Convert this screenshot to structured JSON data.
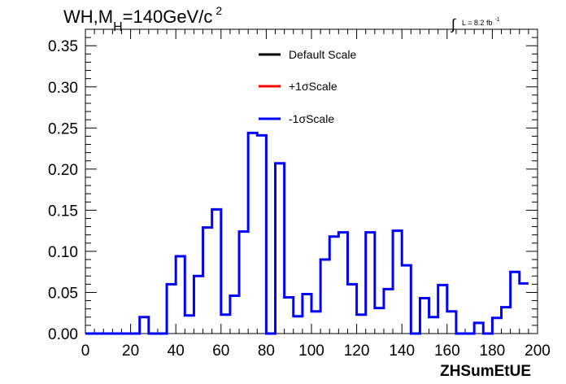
{
  "chart_data": {
    "type": "step",
    "title_parts": {
      "main": "WH,M",
      "sub": "H",
      "rest": "=140GeV/c",
      "sup": "2"
    },
    "lumi": {
      "integral": "∫",
      "text": "L = 8.2 fb",
      "sup": "-1"
    },
    "xlabel": "ZHSumEtUE",
    "ylabel": "",
    "xlim": [
      0,
      200
    ],
    "ylim": [
      0,
      0.37
    ],
    "xticks": [
      0,
      20,
      40,
      60,
      80,
      100,
      120,
      140,
      160,
      180,
      200
    ],
    "xtick_labels": [
      "0",
      "20",
      "40",
      "60",
      "80",
      "100",
      "120",
      "140",
      "160",
      "180",
      "200"
    ],
    "yticks": [
      0,
      0.05,
      0.1,
      0.15,
      0.2,
      0.25,
      0.3,
      0.35
    ],
    "ytick_labels": [
      "0.00",
      "0.05",
      "0.10",
      "0.15",
      "0.20",
      "0.25",
      "0.30",
      "0.35"
    ],
    "bin_width": 4,
    "legend_position": "top-center",
    "series": [
      {
        "name": "Default Scale",
        "color": "#000000",
        "draw": false,
        "values": [
          0,
          0,
          0,
          0,
          0,
          0,
          0.02,
          0,
          0,
          0.06,
          0.094,
          0.022,
          0.07,
          0.129,
          0.151,
          0.023,
          0.046,
          0.124,
          0.244,
          0.241,
          0,
          0.207,
          0.044,
          0.021,
          0.048,
          0.027,
          0.09,
          0.118,
          0.123,
          0.06,
          0.023,
          0.123,
          0.031,
          0.054,
          0.125,
          0.083,
          0,
          0.043,
          0.02,
          0.059,
          0.027,
          0,
          0,
          0.013,
          0,
          0.019,
          0.032,
          0.075,
          0.061
        ]
      },
      {
        "name": "+1σScale",
        "color": "#ff0000",
        "draw": false,
        "values": [
          0,
          0,
          0,
          0,
          0,
          0,
          0.02,
          0,
          0,
          0.06,
          0.094,
          0.022,
          0.07,
          0.129,
          0.151,
          0.023,
          0.046,
          0.124,
          0.244,
          0.241,
          0,
          0.207,
          0.044,
          0.021,
          0.048,
          0.027,
          0.09,
          0.118,
          0.123,
          0.06,
          0.023,
          0.123,
          0.031,
          0.054,
          0.125,
          0.083,
          0,
          0.043,
          0.02,
          0.059,
          0.027,
          0,
          0,
          0.013,
          0,
          0.019,
          0.032,
          0.075,
          0.061
        ]
      },
      {
        "name": "-1σScale",
        "color": "#0000ff",
        "draw": true,
        "values": [
          0,
          0,
          0,
          0,
          0,
          0,
          0.02,
          0,
          0,
          0.06,
          0.094,
          0.022,
          0.07,
          0.129,
          0.151,
          0.023,
          0.046,
          0.124,
          0.244,
          0.241,
          0,
          0.207,
          0.044,
          0.021,
          0.048,
          0.027,
          0.09,
          0.118,
          0.123,
          0.06,
          0.023,
          0.123,
          0.031,
          0.054,
          0.125,
          0.083,
          0,
          0.043,
          0.02,
          0.059,
          0.027,
          0,
          0,
          0.013,
          0,
          0.019,
          0.032,
          0.075,
          0.061
        ]
      }
    ]
  }
}
